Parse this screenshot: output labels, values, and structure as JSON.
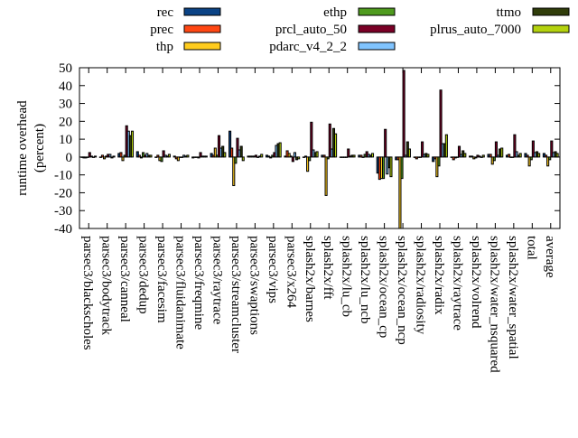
{
  "chart_data": {
    "type": "bar",
    "ylabel": [
      "runtime overhead",
      "(percent)"
    ],
    "ylim": [
      -40,
      50
    ],
    "yticks": [
      -40,
      -30,
      -20,
      -10,
      0,
      10,
      20,
      30,
      40,
      50
    ],
    "grid": false,
    "legend_placement": "top",
    "categories": [
      "parsec3/blackscholes",
      "parsec3/bodytrack",
      "parsec3/canneal",
      "parsec3/dedup",
      "parsec3/facesim",
      "parsec3/fluidanimate",
      "parsec3/freqmine",
      "parsec3/raytrace",
      "parsec3/streamcluster",
      "parsec3/swaptions",
      "parsec3/vips",
      "parsec3/x264",
      "splash2x/barnes",
      "splash2x/fft",
      "splash2x/lu_cb",
      "splash2x/lu_ncb",
      "splash2x/ocean_cp",
      "splash2x/ocean_ncp",
      "splash2x/radiosity",
      "splash2x/radix",
      "splash2x/raytrace",
      "splash2x/volrend",
      "splash2x/water_nsquared",
      "splash2x/water_spatial",
      "total",
      "average"
    ],
    "series": [
      {
        "name": "rec",
        "color": "#0b4385",
        "values": [
          0,
          0,
          2,
          3,
          0,
          0.5,
          -0.5,
          2,
          14.5,
          0.5,
          1,
          0.5,
          0,
          1,
          0,
          1,
          -9,
          -1.5,
          0,
          -2.5,
          0,
          0.5,
          1.5,
          1,
          2,
          2
        ]
      },
      {
        "name": "prec",
        "color": "#ff4713",
        "values": [
          -0.5,
          1,
          2.5,
          1,
          1,
          -1,
          0,
          1,
          5,
          0.5,
          0.5,
          3.5,
          0.5,
          1,
          0,
          1,
          -12.5,
          -1.5,
          -1,
          -1,
          -1.5,
          0.5,
          1.5,
          1.5,
          1,
          1
        ]
      },
      {
        "name": "thp",
        "color": "#ffcc1e",
        "values": [
          -0.5,
          -1,
          -2,
          -0.5,
          -2,
          -2,
          0,
          5,
          -16,
          0.5,
          -0.5,
          2,
          -8,
          -21.5,
          0,
          0,
          -12,
          -40,
          0,
          -11,
          -0.5,
          -1,
          -4,
          0,
          -5,
          -5
        ]
      },
      {
        "name": "ethp",
        "color": "#4e9a1e",
        "values": [
          0,
          0.5,
          1,
          2.5,
          -2.5,
          0,
          -0.5,
          1,
          -3.5,
          0.5,
          1,
          0.5,
          -2,
          -1,
          0,
          1.5,
          -12,
          -12,
          0,
          -5,
          0,
          -0.5,
          -2,
          0,
          -1.5,
          -1.5
        ]
      },
      {
        "name": "prcl_auto_50",
        "color": "#7a0026",
        "values": [
          2.5,
          1.5,
          17.5,
          1,
          3.5,
          0,
          2.5,
          12,
          10.5,
          1,
          2.5,
          -2.5,
          19.5,
          18.5,
          4.5,
          3,
          15.5,
          48.5,
          8.5,
          37.5,
          6,
          1,
          8.5,
          12.5,
          9,
          9
        ]
      },
      {
        "name": "pdarc_v4_2_2",
        "color": "#80c4ff",
        "values": [
          0.5,
          1.5,
          14.5,
          2,
          1,
          1,
          0.5,
          5,
          4,
          0,
          6.5,
          2.5,
          4,
          4.5,
          0.5,
          1.5,
          -9.5,
          1,
          1.5,
          7.5,
          1.5,
          0.5,
          1,
          3,
          2.5,
          2.5
        ]
      },
      {
        "name": "ttmo",
        "color": "#303d0a",
        "values": [
          0,
          -0.5,
          12,
          1,
          0.5,
          0.5,
          0.5,
          6,
          6,
          0.5,
          7.5,
          -1.5,
          2.5,
          16,
          1,
          1,
          -6,
          8.5,
          2,
          7.5,
          3.5,
          0,
          4.5,
          1,
          3,
          3
        ]
      },
      {
        "name": "plrus_auto_7000",
        "color": "#b4d20e",
        "values": [
          0.5,
          0.5,
          14.5,
          1,
          1.5,
          1,
          0.5,
          2.5,
          -2,
          1.5,
          8,
          -1,
          3,
          13,
          1,
          2,
          -11,
          4.5,
          1.5,
          12.5,
          2,
          1,
          5,
          2,
          2,
          2
        ]
      }
    ]
  }
}
